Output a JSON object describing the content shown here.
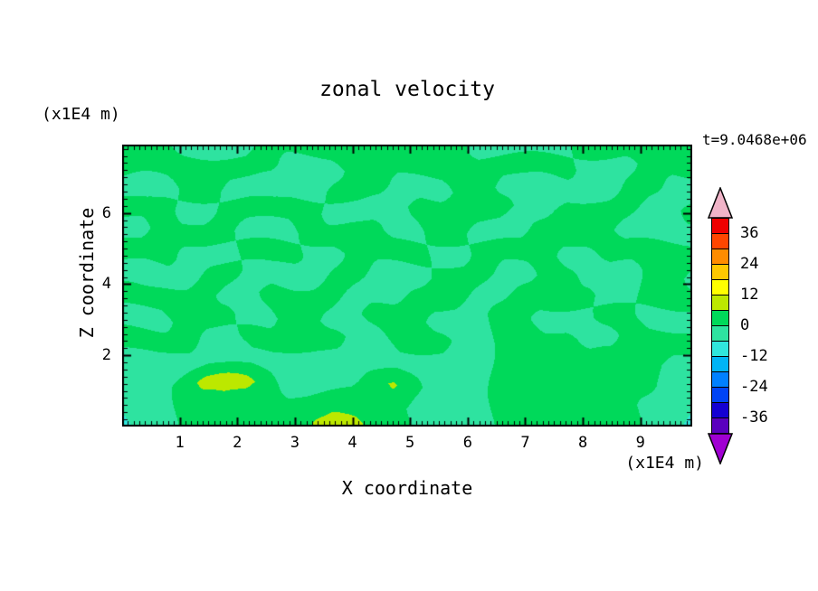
{
  "chart_data": {
    "type": "heatmap",
    "title": "zonal velocity",
    "time": "t=9.0468e+06",
    "xlabel": "X coordinate",
    "ylabel": "Z coordinate",
    "x_unit": "(x1E4 m)",
    "y_unit": "(x1E4 m)",
    "background": "#ffffff",
    "text_color": "#000000",
    "x_range": [
      0,
      9.9
    ],
    "z_range": [
      0,
      7.92
    ],
    "x_ticks": [
      1,
      2,
      3,
      4,
      5,
      6,
      7,
      8,
      9
    ],
    "x_minor_step": 0.1,
    "z_ticks": [
      2,
      4,
      6
    ],
    "z_minor_step": 0.2,
    "colorbar": {
      "levels": [
        -42,
        -36,
        -30,
        -24,
        -18,
        -12,
        -6,
        0,
        6,
        12,
        18,
        24,
        30,
        36,
        42
      ],
      "colors": [
        "#a000d2",
        "#5a00be",
        "#1400d2",
        "#0044f5",
        "#0080ff",
        "#00b4f5",
        "#30e6dc",
        "#2ee3a0",
        "#00d95a",
        "#bce800",
        "#ffff00",
        "#ffc800",
        "#ff8c00",
        "#ff4600",
        "#ee0000",
        "#f0b4c8"
      ],
      "tick_values": [
        36,
        24,
        12,
        0,
        -12,
        -24,
        -36
      ],
      "tick_labels": [
        "36",
        "24",
        "12",
        "0",
        "-12",
        "-24",
        "-36"
      ]
    },
    "grid": {
      "rows": 14,
      "cols": 28,
      "order": "top-to-bottom",
      "values": [
        [
          2,
          2,
          1,
          -2,
          -2,
          -2,
          -2,
          2,
          2,
          2,
          2,
          2,
          2,
          2,
          2,
          2,
          2,
          -2,
          -2,
          -2,
          -2,
          -2,
          2,
          2,
          2,
          2,
          2,
          2
        ],
        [
          2,
          2,
          2,
          2,
          2,
          2,
          2,
          2,
          -2,
          -2,
          -2,
          2,
          2,
          2,
          2,
          2,
          2,
          2,
          2,
          2,
          2,
          2,
          -2,
          -2,
          -2,
          2,
          2,
          2
        ],
        [
          -2,
          -3,
          -2,
          2,
          2,
          -2,
          -2,
          -3,
          -2,
          -2,
          2,
          2,
          2,
          -2,
          -2,
          -2,
          2,
          2,
          -2,
          -2,
          -3,
          -2,
          -2,
          -2,
          2,
          2,
          -2,
          -2
        ],
        [
          2,
          2,
          2,
          -2,
          -2,
          2,
          2,
          2,
          2,
          2,
          -2,
          -2,
          -3,
          -2,
          2,
          2,
          2,
          2,
          2,
          -2,
          -2,
          2,
          2,
          2,
          2,
          -2,
          -2,
          2
        ],
        [
          -2,
          -2,
          2,
          2,
          2,
          2,
          -2,
          -2,
          -2,
          2,
          2,
          2,
          2,
          -2,
          -2,
          2,
          2,
          -2,
          -2,
          -2,
          2,
          2,
          2,
          2,
          -2,
          -2,
          -2,
          -2
        ],
        [
          2,
          2,
          2,
          -2,
          -2,
          -2,
          2,
          2,
          2,
          -2,
          -2,
          2,
          2,
          2,
          2,
          -2,
          -2,
          2,
          2,
          2,
          2,
          -2,
          -2,
          2,
          2,
          2,
          2,
          2
        ],
        [
          -2,
          -3,
          -2,
          -2,
          2,
          2,
          -2,
          -2,
          -3,
          -2,
          2,
          2,
          -2,
          -2,
          -2,
          2,
          2,
          2,
          -2,
          -2,
          2,
          2,
          -2,
          -2,
          -2,
          2,
          2,
          -2
        ],
        [
          2,
          2,
          2,
          2,
          2,
          -2,
          -2,
          2,
          2,
          2,
          2,
          -2,
          -2,
          -2,
          2,
          2,
          2,
          -2,
          -2,
          2,
          2,
          2,
          2,
          -2,
          -2,
          2,
          2,
          2
        ],
        [
          -2,
          -2,
          -2,
          2,
          2,
          2,
          -2,
          -2,
          2,
          2,
          -2,
          -2,
          2,
          2,
          2,
          -2,
          -2,
          -2,
          2,
          2,
          -2,
          -2,
          -2,
          2,
          2,
          -2,
          -2,
          -2
        ],
        [
          2,
          2,
          2,
          2,
          -2,
          -2,
          2,
          2,
          2,
          2,
          2,
          -2,
          -2,
          2,
          2,
          2,
          -2,
          -2,
          2,
          2,
          2,
          2,
          -2,
          -2,
          2,
          2,
          2,
          2
        ],
        [
          -2,
          -3,
          -3,
          -2,
          -2,
          -3,
          -2,
          -2,
          -3,
          -3,
          -2,
          -2,
          -3,
          -2,
          -2,
          -2,
          -3,
          -2,
          2,
          2,
          2,
          2,
          2,
          2,
          2,
          2,
          -2,
          -2
        ],
        [
          -3,
          -3,
          -2,
          2,
          8,
          9,
          8,
          3,
          -2,
          -3,
          -3,
          -2,
          3,
          7,
          2,
          -3,
          -3,
          -2,
          2,
          2,
          2,
          2,
          2,
          2,
          2,
          2,
          -2,
          -3
        ],
        [
          -5,
          -3,
          -2,
          2,
          3,
          4,
          3,
          2,
          2,
          3,
          4,
          3,
          2,
          2,
          -2,
          -3,
          -3,
          -2,
          2,
          2,
          3,
          2,
          2,
          2,
          2,
          -2,
          -3,
          -5
        ],
        [
          -7,
          -4,
          -2,
          2,
          2,
          3,
          2,
          2,
          3,
          7,
          8,
          7,
          3,
          2,
          -2,
          -3,
          -2,
          -2,
          2,
          2,
          2,
          2,
          2,
          2,
          2,
          -2,
          -5,
          -8
        ]
      ]
    }
  }
}
